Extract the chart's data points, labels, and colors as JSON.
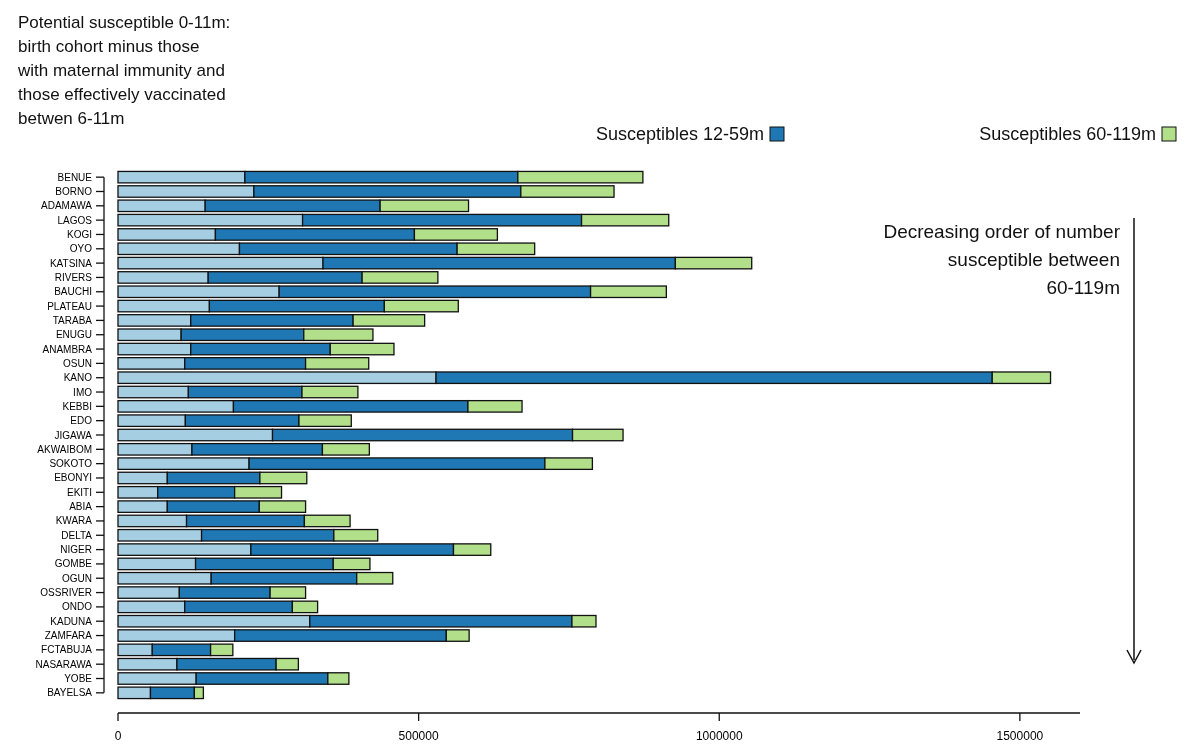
{
  "chart_data": {
    "type": "bar",
    "orientation": "horizontal",
    "stacked": true,
    "legend": "top",
    "categories": [
      "BENUE",
      "BORNO",
      "ADAMAWA",
      "LAGOS",
      "KOGI",
      "OYO",
      "KATSINA",
      "RIVERS",
      "BAUCHI",
      "PLATEAU",
      "TARABA",
      "ENUGU",
      "ANAMBRA",
      "OSUN",
      "KANO",
      "IMO",
      "KEBBI",
      "EDO",
      "JIGAWA",
      "AKWAIBOM",
      "SOKOTO",
      "EBONYI",
      "EKITI",
      "ABIA",
      "KWARA",
      "DELTA",
      "NIGER",
      "GOMBE",
      "OGUN",
      "OSSRIVER",
      "ONDO",
      "KADUNA",
      "ZAMFARA",
      "FCTABUJA",
      "NASARAWA",
      "YOBE",
      "BAYELSA"
    ],
    "series": [
      {
        "name": "Potential susceptible 0-11m: birth cohort minus those with maternal immunity and those effectively vaccinated betwen 6-11m",
        "color": "#a6cee3",
        "values": [
          211000,
          226000,
          145000,
          307000,
          162000,
          202000,
          341000,
          150000,
          268000,
          152000,
          121000,
          105000,
          121000,
          111000,
          529000,
          117000,
          192000,
          112000,
          257000,
          123000,
          218000,
          82000,
          66000,
          82000,
          114000,
          139000,
          221000,
          129000,
          155000,
          102000,
          111000,
          319000,
          194000,
          57000,
          98000,
          130000,
          54000
        ]
      },
      {
        "name": "Susceptibles 12-59m",
        "color": "#1f78b4",
        "values": [
          454000,
          444000,
          291000,
          464000,
          331000,
          362000,
          586000,
          256000,
          518000,
          291000,
          270000,
          204000,
          232000,
          201000,
          925000,
          189000,
          390000,
          189000,
          499000,
          217000,
          492000,
          154000,
          128000,
          153000,
          196000,
          220000,
          337000,
          229000,
          242000,
          151000,
          179000,
          436000,
          352000,
          97000,
          165000,
          219000,
          73000
        ]
      },
      {
        "name": "Susceptibles 60-119m",
        "color": "#b2df8a",
        "values": [
          208000,
          155000,
          147000,
          145000,
          138000,
          129000,
          127000,
          126000,
          126000,
          123000,
          119000,
          115000,
          106000,
          105000,
          97000,
          93000,
          90000,
          87000,
          84000,
          78000,
          79000,
          78000,
          78000,
          77000,
          76000,
          73000,
          62000,
          61000,
          60000,
          59000,
          42000,
          40000,
          38000,
          37000,
          37000,
          35000,
          15000
        ]
      }
    ],
    "xlim": [
      0,
      1600000
    ],
    "xticks": [
      0,
      500000,
      1000000,
      1500000
    ],
    "annotations": [
      "Decreasing order of number susceptible between 60-119m"
    ]
  }
}
